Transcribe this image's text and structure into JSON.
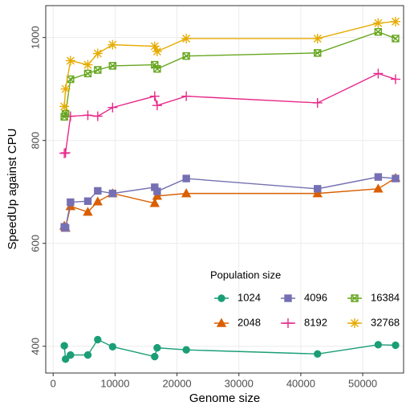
{
  "chart_data": {
    "type": "line",
    "x_label": "Genome size",
    "y_label": "SpeedUp against CPU",
    "legend_title": "Population size",
    "legend_position": "bottom-right",
    "x": [
      1800,
      2000,
      2800,
      5600,
      7200,
      9600,
      16400,
      16800,
      21500,
      42700,
      52500,
      55300
    ],
    "series": [
      {
        "name": "1024",
        "color": "#1b9e77",
        "marker": "circle",
        "values": [
          401,
          375,
          383,
          383,
          413,
          399,
          380,
          397,
          393,
          385,
          403,
          402
        ]
      },
      {
        "name": "2048",
        "color": "#d95f02",
        "marker": "triangle",
        "values": [
          634,
          630,
          672,
          661,
          681,
          697,
          678,
          692,
          697,
          697,
          706,
          727
        ]
      },
      {
        "name": "4096",
        "color": "#7570b3",
        "marker": "square",
        "values": [
          632,
          630,
          680,
          682,
          702,
          697,
          709,
          701,
          726,
          706,
          729,
          726
        ]
      },
      {
        "name": "8192",
        "color": "#e7298a",
        "marker": "plus",
        "values": [
          775,
          776,
          847,
          849,
          847,
          864,
          886,
          868,
          886,
          873,
          930,
          919
        ]
      },
      {
        "name": "16384",
        "color": "#66a61e",
        "marker": "square-x",
        "values": [
          846,
          852,
          919,
          930,
          937,
          945,
          947,
          939,
          964,
          970,
          1011,
          998
        ]
      },
      {
        "name": "32768",
        "color": "#e6ab02",
        "marker": "asterisk",
        "values": [
          866,
          900,
          955,
          947,
          969,
          986,
          983,
          973,
          998,
          998,
          1028,
          1031
        ]
      }
    ],
    "xlim": [
      -1200,
      56600
    ],
    "ylim": [
      348,
      1062
    ],
    "xticks": [
      0,
      10000,
      20000,
      30000,
      40000,
      50000
    ],
    "yticks": [
      400,
      600,
      800,
      1000
    ],
    "grid": true
  }
}
